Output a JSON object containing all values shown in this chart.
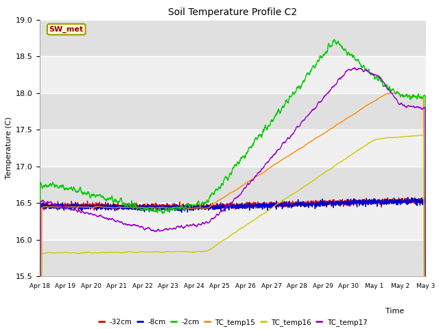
{
  "title": "Soil Temperature Profile C2",
  "xlabel": "Time",
  "ylabel": "Temperature (C)",
  "ylim": [
    15.5,
    19.0
  ],
  "annotation_text": "SW_met",
  "annotation_bg": "#ffffcc",
  "annotation_border": "#999900",
  "annotation_text_color": "#990000",
  "plot_bg_light": "#f0f0f0",
  "plot_bg_dark": "#e0e0e0",
  "xtick_labels": [
    "Apr 18",
    "Apr 19",
    "Apr 20",
    "Apr 21",
    "Apr 22",
    "Apr 23",
    "Apr 24",
    "Apr 25",
    "Apr 26",
    "Apr 27",
    "Apr 28",
    "Apr 29",
    "Apr 30",
    "May 1",
    "May 2",
    "May 3"
  ],
  "series": {
    "-32cm": {
      "color": "#dd0000",
      "linewidth": 1.0
    },
    "-8cm": {
      "color": "#0000cc",
      "linewidth": 1.0
    },
    "-2cm": {
      "color": "#00cc00",
      "linewidth": 1.0
    },
    "TC_temp15": {
      "color": "#ff8800",
      "linewidth": 1.0
    },
    "TC_temp16": {
      "color": "#cccc00",
      "linewidth": 1.0
    },
    "TC_temp17": {
      "color": "#9900cc",
      "linewidth": 1.0
    }
  }
}
